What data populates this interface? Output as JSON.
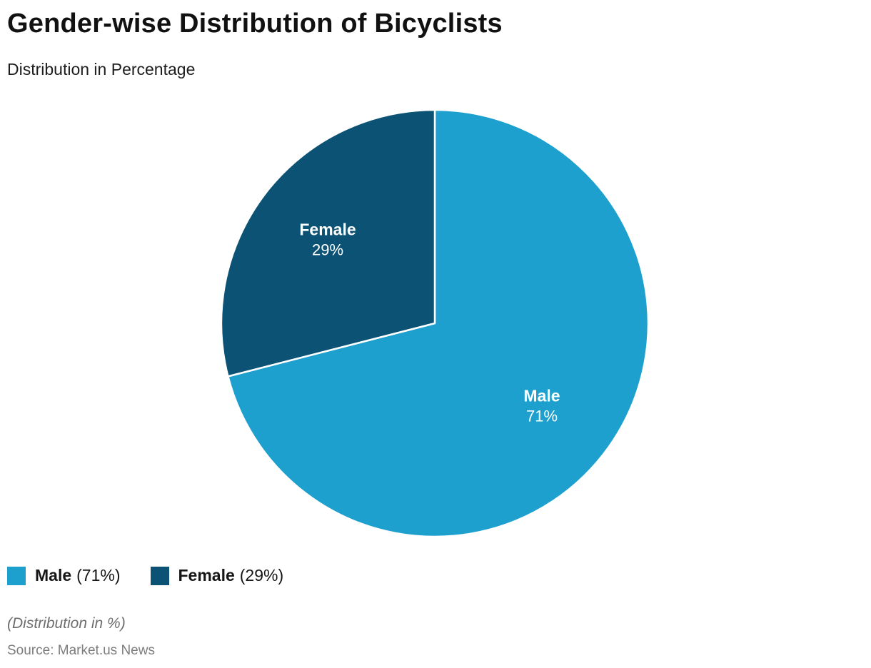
{
  "header": {
    "title": "Gender-wise Distribution of Bicyclists",
    "subtitle": "Distribution in Percentage"
  },
  "chart_data": {
    "type": "pie",
    "title": "Gender-wise Distribution of Bicyclists",
    "subtitle": "Distribution in Percentage",
    "start_angle_deg": 0,
    "direction": "clockwise",
    "slices": [
      {
        "label": "Male",
        "value": 71,
        "color": "#1ea0ce",
        "slice_label": "Male",
        "slice_value_label": "71%"
      },
      {
        "label": "Female",
        "value": 29,
        "color": "#0b5274",
        "slice_label": "Female",
        "slice_value_label": "29%"
      }
    ],
    "divider_color": "#ffffff",
    "legend_position": "bottom-left"
  },
  "legend": {
    "items": [
      {
        "label": "Male",
        "value_text": "(71%)",
        "color": "#1ea0ce"
      },
      {
        "label": "Female",
        "value_text": "(29%)",
        "color": "#0b5274"
      }
    ]
  },
  "footer": {
    "note": "(Distribution in %)",
    "source": "Source: Market.us News"
  }
}
